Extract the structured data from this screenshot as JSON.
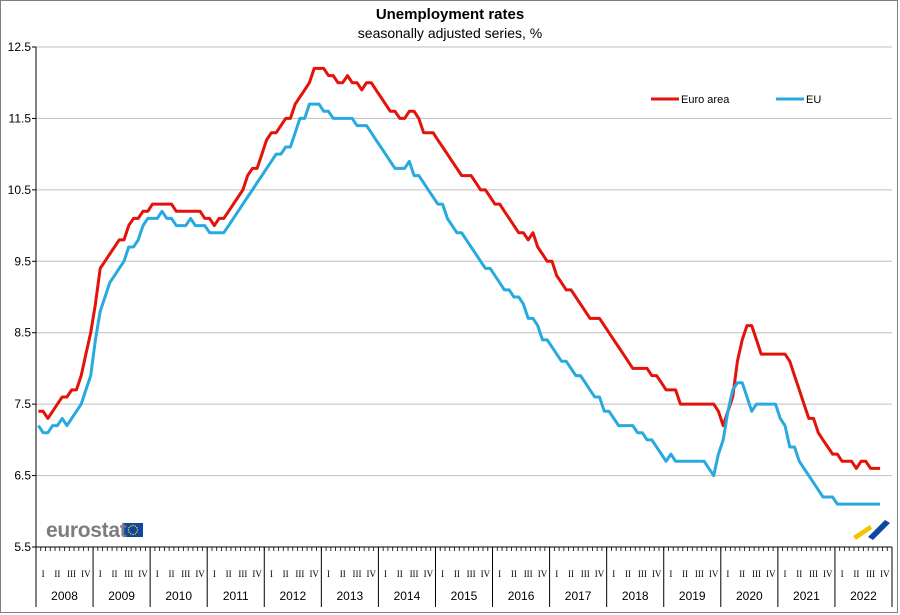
{
  "chart_data": {
    "type": "line",
    "title": "Unemployment rates",
    "subtitle": "seasonally adjusted series, %",
    "ylim": [
      5.5,
      12.5
    ],
    "yticks": [
      "5.5",
      "6.5",
      "7.5",
      "8.5",
      "9.5",
      "10.5",
      "11.5",
      "12.5"
    ],
    "grid": true,
    "legend_position": "top-right",
    "years": [
      "2008",
      "2009",
      "2010",
      "2011",
      "2012",
      "2013",
      "2014",
      "2015",
      "2016",
      "2017",
      "2018",
      "2019",
      "2020",
      "2021",
      "2022"
    ],
    "quarters": [
      "I",
      "II",
      "III",
      "IV"
    ],
    "months_per_year": 12,
    "series": [
      {
        "name": "Euro area",
        "color": "#e3120b",
        "values": [
          7.4,
          7.4,
          7.3,
          7.4,
          7.5,
          7.6,
          7.6,
          7.7,
          7.7,
          7.9,
          8.2,
          8.5,
          8.9,
          9.4,
          9.5,
          9.6,
          9.7,
          9.8,
          9.8,
          10.0,
          10.1,
          10.1,
          10.2,
          10.2,
          10.3,
          10.3,
          10.3,
          10.3,
          10.3,
          10.2,
          10.2,
          10.2,
          10.2,
          10.2,
          10.2,
          10.1,
          10.1,
          10.0,
          10.1,
          10.1,
          10.2,
          10.3,
          10.4,
          10.5,
          10.7,
          10.8,
          10.8,
          11.0,
          11.2,
          11.3,
          11.3,
          11.4,
          11.5,
          11.5,
          11.7,
          11.8,
          11.9,
          12.0,
          12.2,
          12.2,
          12.2,
          12.1,
          12.1,
          12.0,
          12.0,
          12.1,
          12.0,
          12.0,
          11.9,
          12.0,
          12.0,
          11.9,
          11.8,
          11.7,
          11.6,
          11.6,
          11.5,
          11.5,
          11.6,
          11.6,
          11.5,
          11.3,
          11.3,
          11.3,
          11.2,
          11.1,
          11.0,
          10.9,
          10.8,
          10.7,
          10.7,
          10.7,
          10.6,
          10.5,
          10.5,
          10.4,
          10.3,
          10.3,
          10.2,
          10.1,
          10.0,
          9.9,
          9.9,
          9.8,
          9.9,
          9.7,
          9.6,
          9.5,
          9.5,
          9.3,
          9.2,
          9.1,
          9.1,
          9.0,
          8.9,
          8.8,
          8.7,
          8.7,
          8.7,
          8.6,
          8.5,
          8.4,
          8.3,
          8.2,
          8.1,
          8.0,
          8.0,
          8.0,
          8.0,
          7.9,
          7.9,
          7.8,
          7.7,
          7.7,
          7.7,
          7.5,
          7.5,
          7.5,
          7.5,
          7.5,
          7.5,
          7.5,
          7.5,
          7.4,
          7.2,
          7.4,
          7.6,
          8.1,
          8.4,
          8.6,
          8.6,
          8.4,
          8.2,
          8.2,
          8.2,
          8.2,
          8.2,
          8.2,
          8.1,
          7.9,
          7.7,
          7.5,
          7.3,
          7.3,
          7.1,
          7.0,
          6.9,
          6.8,
          6.8,
          6.7,
          6.7,
          6.7,
          6.6,
          6.7,
          6.7,
          6.6,
          6.6,
          6.6
        ]
      },
      {
        "name": "EU",
        "color": "#28aae1",
        "values": [
          7.2,
          7.1,
          7.1,
          7.2,
          7.2,
          7.3,
          7.2,
          7.3,
          7.4,
          7.5,
          7.7,
          7.9,
          8.4,
          8.8,
          9.0,
          9.2,
          9.3,
          9.4,
          9.5,
          9.7,
          9.7,
          9.8,
          10.0,
          10.1,
          10.1,
          10.1,
          10.2,
          10.1,
          10.1,
          10.0,
          10.0,
          10.0,
          10.1,
          10.0,
          10.0,
          10.0,
          9.9,
          9.9,
          9.9,
          9.9,
          10.0,
          10.1,
          10.2,
          10.3,
          10.4,
          10.5,
          10.6,
          10.7,
          10.8,
          10.9,
          11.0,
          11.0,
          11.1,
          11.1,
          11.3,
          11.5,
          11.5,
          11.7,
          11.7,
          11.7,
          11.6,
          11.6,
          11.5,
          11.5,
          11.5,
          11.5,
          11.5,
          11.4,
          11.4,
          11.4,
          11.3,
          11.2,
          11.1,
          11.0,
          10.9,
          10.8,
          10.8,
          10.8,
          10.9,
          10.7,
          10.7,
          10.6,
          10.5,
          10.4,
          10.3,
          10.3,
          10.1,
          10.0,
          9.9,
          9.9,
          9.8,
          9.7,
          9.6,
          9.5,
          9.4,
          9.4,
          9.3,
          9.2,
          9.1,
          9.1,
          9.0,
          9.0,
          8.9,
          8.7,
          8.7,
          8.6,
          8.4,
          8.4,
          8.3,
          8.2,
          8.1,
          8.1,
          8.0,
          7.9,
          7.9,
          7.8,
          7.7,
          7.6,
          7.6,
          7.4,
          7.4,
          7.3,
          7.2,
          7.2,
          7.2,
          7.2,
          7.1,
          7.1,
          7.0,
          7.0,
          6.9,
          6.8,
          6.7,
          6.8,
          6.7,
          6.7,
          6.7,
          6.7,
          6.7,
          6.7,
          6.7,
          6.6,
          6.5,
          6.8,
          7.0,
          7.4,
          7.7,
          7.8,
          7.8,
          7.6,
          7.4,
          7.5,
          7.5,
          7.5,
          7.5,
          7.5,
          7.3,
          7.2,
          6.9,
          6.9,
          6.7,
          6.6,
          6.5,
          6.4,
          6.3,
          6.2,
          6.2,
          6.2,
          6.1,
          6.1,
          6.1,
          6.1,
          6.1,
          6.1,
          6.1,
          6.1,
          6.1,
          6.1
        ]
      }
    ]
  },
  "branding": {
    "wordmark": "eurostat"
  }
}
